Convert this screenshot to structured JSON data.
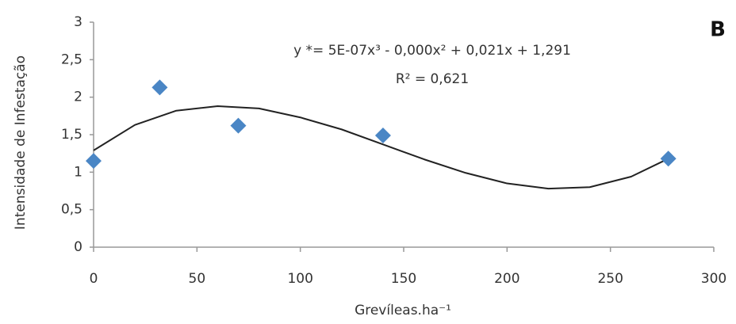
{
  "chart_data": {
    "type": "scatter",
    "panel_label": "B",
    "equation": "y *= 5E-07x³ - 0,000x² + 0,021x + 1,291",
    "r_squared": "R² = 0,621",
    "xlabel": "Grevíleas.ha⁻¹",
    "ylabel": "Intensidade de Infestação",
    "x": [
      0,
      32,
      70,
      140,
      278
    ],
    "values": [
      1.15,
      2.13,
      1.62,
      1.49,
      1.18
    ],
    "color": "#4a86c5",
    "trendline": {
      "color": "#222222",
      "x": [
        0,
        20,
        40,
        60,
        80,
        100,
        120,
        140,
        160,
        180,
        200,
        220,
        240,
        260,
        278
      ],
      "values": [
        1.29,
        1.63,
        1.82,
        1.88,
        1.85,
        1.73,
        1.57,
        1.37,
        1.17,
        0.99,
        0.85,
        0.78,
        0.8,
        0.94,
        1.18
      ]
    },
    "xlim": [
      0,
      300
    ],
    "ylim": [
      0,
      3
    ],
    "xticks": [
      0,
      50,
      100,
      150,
      200,
      250,
      300
    ],
    "yticks": [
      0,
      {
        "value": 0.5,
        "label": "0,5"
      },
      1,
      {
        "value": 1.5,
        "label": "1,5"
      },
      2,
      {
        "value": 2.5,
        "label": "2,5"
      },
      3
    ],
    "grid": false
  }
}
